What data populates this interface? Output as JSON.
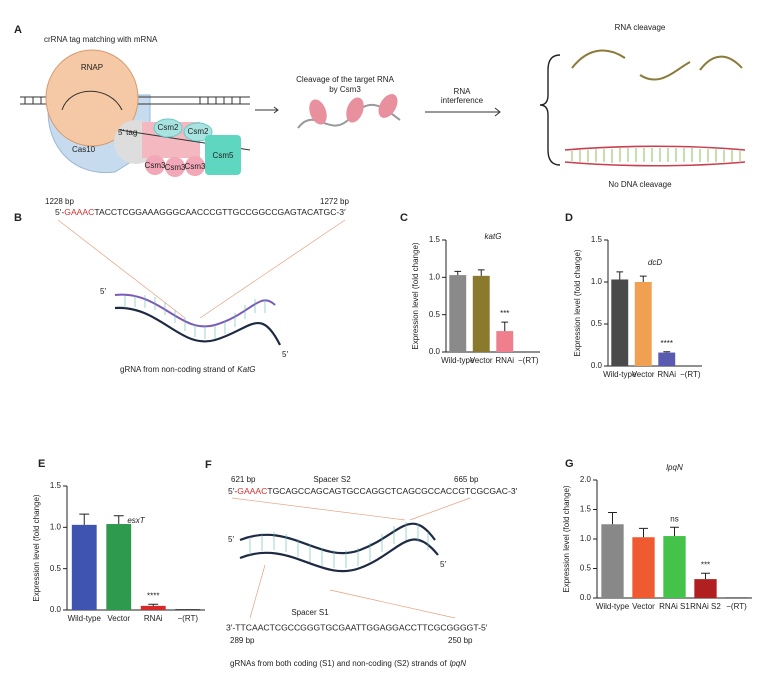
{
  "panel_a": {
    "label": "A",
    "title": "crRNA tag matching with mRNA",
    "rnap": "RNAP",
    "cas10": "Cas10",
    "tag": "5′ tag",
    "csm": [
      "Csm2",
      "Csm2",
      "Csm3",
      "Csm3",
      "Csm3",
      "Csm5"
    ],
    "cleavage": [
      "Cleavage of the target RNA",
      "by Csm3"
    ],
    "interference": [
      "RNA",
      "interference"
    ],
    "rna_cleavage": "RNA cleavage",
    "no_dna_cleavage": "No DNA cleavage"
  },
  "panel_b": {
    "label": "B",
    "start": "1228 bp",
    "end": "1272 bp",
    "seq_prefix": "5′-",
    "seq_pam": "GAAAC",
    "seq_rest": "TACCTCGGAAAGGGCAACCCGTTGCCGGCCGAGTACATGC-3′",
    "end_top": "5′",
    "end_bottom": "5′",
    "caption": "gRNA from non-coding strand of",
    "caption_gene": "KatG"
  },
  "panel_f": {
    "label": "F",
    "start": "621 bp",
    "spacer_top": "Spacer S2",
    "end": "665 bp",
    "seq_prefix": "5′-",
    "seq_pam": "GAAAC",
    "seq_rest": "TGCAGCCAGCAGTGCCAGGCTCAGCGCCACCGTCGCGAC-3′",
    "end_top": "5′",
    "end_bottom": "5′",
    "spacer_bottom": "Spacer S1",
    "seq_bottom": "3′-TTCAACTCGCCGGGTGCGAATTGGAGGACCTTCGCGGGGT-5′",
    "bottom_start": "289 bp",
    "bottom_end": "250 bp",
    "caption": "gRNAs from both coding (S1) and non-coding (S2) strands of",
    "caption_gene": "lpqN"
  },
  "chart_data": [
    {
      "type": "bar",
      "label": "C",
      "title": "katG",
      "ylabel": "Expression level (fold change)",
      "categories": [
        "Wild-type",
        "Vector",
        "RNAi",
        "−(RT)"
      ],
      "values": [
        1.03,
        1.02,
        0.28,
        0.005
      ],
      "errors": [
        0.05,
        0.08,
        0.12,
        0
      ],
      "annotations": [
        null,
        null,
        "***",
        null
      ],
      "colors": [
        "#8a8a8a",
        "#8b7a2e",
        "#f07f8e",
        "#222222"
      ],
      "ylim": [
        0,
        1.5
      ],
      "yticks": [
        {
          "value": 0,
          "label": "0.0"
        },
        0.5,
        {
          "value": 1,
          "label": "1.0"
        },
        1.5
      ]
    },
    {
      "type": "bar",
      "label": "D",
      "title": "dcD",
      "ylabel": "Expression level (fold change)",
      "categories": [
        "Wild-type",
        "Vector",
        "RNAi",
        "−(RT)"
      ],
      "values": [
        1.03,
        1.0,
        0.16,
        0.005
      ],
      "errors": [
        0.09,
        0.07,
        0.01,
        0
      ],
      "annotations": [
        null,
        null,
        "****",
        null
      ],
      "colors": [
        "#4a4a4a",
        "#f0a050",
        "#5a5ab0",
        "#222222"
      ],
      "ylim": [
        0,
        1.5
      ],
      "yticks": [
        {
          "value": 0,
          "label": "0.0"
        },
        0.5,
        {
          "value": 1,
          "label": "1.0"
        },
        1.5
      ]
    },
    {
      "type": "bar",
      "label": "E",
      "title": "esxT",
      "ylabel": "Expression level (fold change)",
      "categories": [
        "Wild-type",
        "Vector",
        "RNAi",
        "−(RT)"
      ],
      "values": [
        1.03,
        1.04,
        0.05,
        0.01
      ],
      "errors": [
        0.13,
        0.1,
        0.02,
        0
      ],
      "annotations": [
        null,
        null,
        "****",
        null
      ],
      "colors": [
        "#3f54b0",
        "#2e9a4e",
        "#d62a2a",
        "#222222"
      ],
      "ylim": [
        0,
        1.5
      ],
      "yticks": [
        {
          "value": 0,
          "label": "0.0"
        },
        0.5,
        {
          "value": 1,
          "label": "1.0"
        },
        1.5
      ]
    },
    {
      "type": "bar",
      "label": "G",
      "title": "lpqN",
      "ylabel": "Expression level (fold change)",
      "categories": [
        "Wild-type",
        "Vector",
        "RNAi S1",
        "RNAi S2",
        "−(RT)"
      ],
      "values": [
        1.25,
        1.03,
        1.05,
        0.32,
        0.01
      ],
      "errors": [
        0.2,
        0.15,
        0.15,
        0.1,
        0
      ],
      "annotations": [
        null,
        null,
        "ns",
        "***",
        null
      ],
      "colors": [
        "#888888",
        "#ef5a30",
        "#44c24a",
        "#b02020",
        "#222222"
      ],
      "ylim": [
        0,
        2
      ],
      "yticks": [
        {
          "value": 0,
          "label": "0.0"
        },
        0.5,
        {
          "value": 1,
          "label": "1.0"
        },
        1.5,
        {
          "value": 2,
          "label": "2.0"
        }
      ]
    }
  ]
}
